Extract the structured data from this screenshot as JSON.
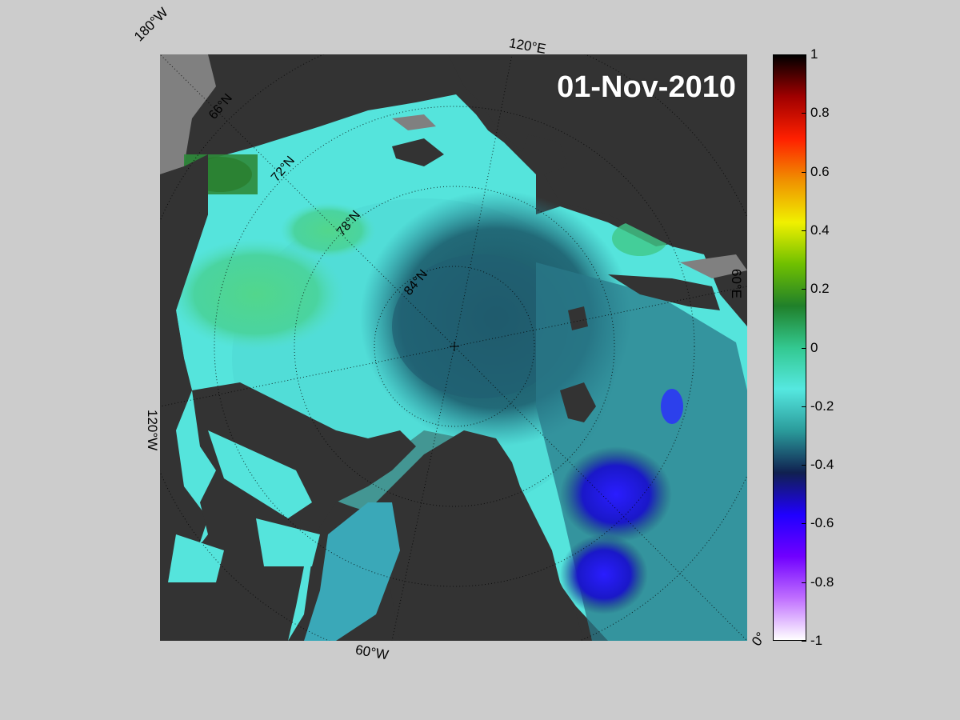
{
  "map": {
    "date": "01-Nov-2010",
    "longitude_labels": [
      "180°W",
      "120°E",
      "60°E",
      "0°",
      "60°W",
      "120°W"
    ],
    "latitude_labels": [
      "66°N",
      "72°N",
      "78°N",
      "84°N"
    ]
  },
  "colorbar": {
    "ticks": [
      "1",
      "0.8",
      "0.6",
      "0.4",
      "0.2",
      "0",
      "-0.2",
      "-0.4",
      "-0.6",
      "-0.8",
      "-1"
    ],
    "range": [
      -1,
      1
    ],
    "colors": [
      "#ffffff",
      "#c070ff",
      "#7000ff",
      "#2000ff",
      "#102050",
      "#2a9a9a",
      "#55e8e0",
      "#33c890",
      "#20802a",
      "#70c000",
      "#f0f000",
      "#f09000",
      "#ff2000",
      "#a00000",
      "#000000"
    ]
  },
  "legend": {
    "land_color": "#333333",
    "nodata_color": "#808080",
    "background_color": "#cccccc"
  }
}
